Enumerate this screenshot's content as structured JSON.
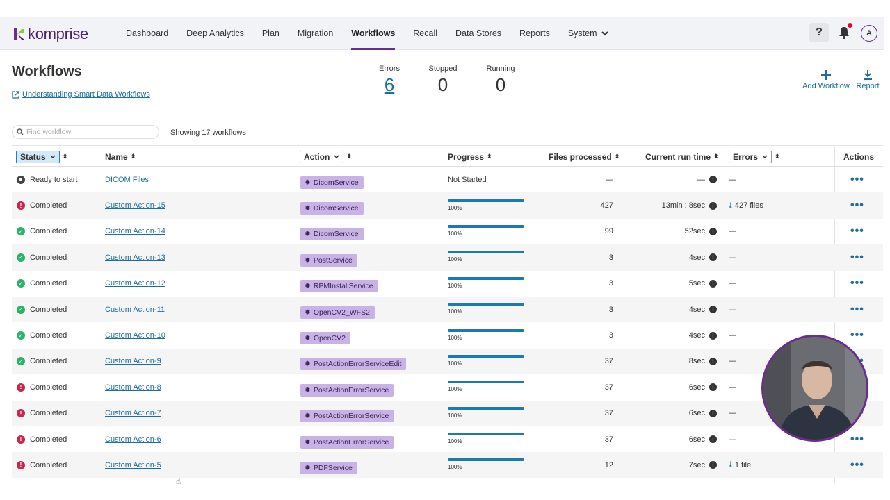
{
  "brand": {
    "name": "komprise",
    "accent": "#6b2d8b",
    "link": "#1d6e9e"
  },
  "nav": {
    "items": [
      {
        "label": "Dashboard"
      },
      {
        "label": "Deep Analytics"
      },
      {
        "label": "Plan"
      },
      {
        "label": "Migration"
      },
      {
        "label": "Workflows",
        "active": true
      },
      {
        "label": "Recall"
      },
      {
        "label": "Data Stores"
      },
      {
        "label": "Reports"
      },
      {
        "label": "System"
      }
    ],
    "help_label": "?",
    "avatar_initial": "A"
  },
  "page": {
    "title": "Workflows",
    "help_link": "Understanding Smart Data Workflows"
  },
  "stats": {
    "errors_label": "Errors",
    "errors_value": "6",
    "stopped_label": "Stopped",
    "stopped_value": "0",
    "running_label": "Running",
    "running_value": "0"
  },
  "toolbar": {
    "add_label": "Add Workflow",
    "report_label": "Report"
  },
  "search": {
    "placeholder": "Find workflow",
    "value": ""
  },
  "showing": "Showing 17 workflows",
  "table": {
    "headers": {
      "status": "Status",
      "name": "Name",
      "action": "Action",
      "progress": "Progress",
      "files": "Files processed",
      "runtime": "Current run time",
      "errors": "Errors",
      "actions": "Actions"
    },
    "rows": [
      {
        "status": "Ready to start",
        "state": "ready",
        "name": "DICOM Files",
        "action": "DicomService",
        "progress_text": "Not Started",
        "progress": null,
        "files": "—",
        "runtime": "—",
        "errors": "—",
        "errors_download": false
      },
      {
        "status": "Completed",
        "state": "error",
        "name": "Custom Action-15",
        "action": "DicomService",
        "progress_text": "100%",
        "progress": 1.0,
        "files": "427",
        "runtime": "13min : 8sec",
        "errors": "427 files",
        "errors_download": true
      },
      {
        "status": "Completed",
        "state": "ok",
        "name": "Custom Action-14",
        "action": "DicomService",
        "progress_text": "100%",
        "progress": 1.0,
        "files": "99",
        "runtime": "52sec",
        "errors": "—",
        "errors_download": false
      },
      {
        "status": "Completed",
        "state": "ok",
        "name": "Custom Action-13",
        "action": "PostService",
        "progress_text": "100%",
        "progress": 1.0,
        "files": "3",
        "runtime": "4sec",
        "errors": "—",
        "errors_download": false
      },
      {
        "status": "Completed",
        "state": "ok",
        "name": "Custom Action-12",
        "action": "RPMInstallService",
        "progress_text": "100%",
        "progress": 1.0,
        "files": "3",
        "runtime": "5sec",
        "errors": "—",
        "errors_download": false
      },
      {
        "status": "Completed",
        "state": "ok",
        "name": "Custom Action-11",
        "action": "OpenCV2_WFS2",
        "progress_text": "100%",
        "progress": 1.0,
        "files": "3",
        "runtime": "4sec",
        "errors": "—",
        "errors_download": false
      },
      {
        "status": "Completed",
        "state": "ok",
        "name": "Custom Action-10",
        "action": "OpenCV2",
        "progress_text": "100%",
        "progress": 1.0,
        "files": "3",
        "runtime": "4sec",
        "errors": "—",
        "errors_download": false
      },
      {
        "status": "Completed",
        "state": "ok",
        "name": "Custom Action-9",
        "action": "PostActionErrorServiceEdit",
        "progress_text": "100%",
        "progress": 1.0,
        "files": "37",
        "runtime": "8sec",
        "errors": "—",
        "errors_download": false
      },
      {
        "status": "Completed",
        "state": "error",
        "name": "Custom Action-8",
        "action": "PostActionErrorService",
        "progress_text": "100%",
        "progress": 1.0,
        "files": "37",
        "runtime": "6sec",
        "errors": "—",
        "errors_download": false
      },
      {
        "status": "Completed",
        "state": "error",
        "name": "Custom Action-7",
        "action": "PostActionErrorService",
        "progress_text": "100%",
        "progress": 1.0,
        "files": "37",
        "runtime": "6sec",
        "errors": "—",
        "errors_download": false
      },
      {
        "status": "Completed",
        "state": "error",
        "name": "Custom Action-6",
        "action": "PostActionErrorService",
        "progress_text": "100%",
        "progress": 1.0,
        "files": "37",
        "runtime": "6sec",
        "errors": "—",
        "errors_download": false
      },
      {
        "status": "Completed",
        "state": "error",
        "name": "Custom Action-5",
        "action": "PDFService",
        "progress_text": "100%",
        "progress": 1.0,
        "files": "12",
        "runtime": "7sec",
        "errors": "1 file",
        "errors_download": true
      }
    ]
  }
}
